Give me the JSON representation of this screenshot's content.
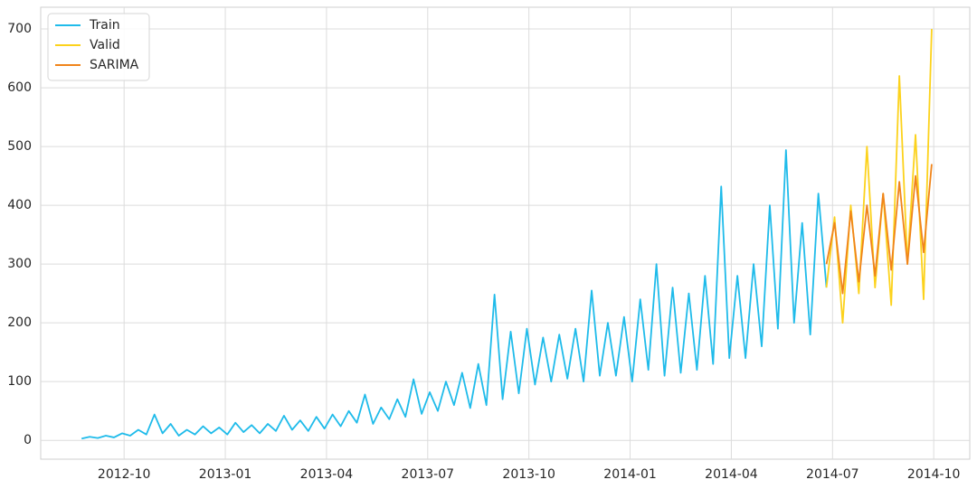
{
  "chart_data": {
    "type": "line",
    "xlim": [
      2012.544,
      2014.839
    ],
    "xticks": [
      {
        "value": 2012.75,
        "label": "2012-10"
      },
      {
        "value": 2013.0,
        "label": "2013-01"
      },
      {
        "value": 2013.25,
        "label": "2013-04"
      },
      {
        "value": 2013.5,
        "label": "2013-07"
      },
      {
        "value": 2013.75,
        "label": "2013-10"
      },
      {
        "value": 2014.0,
        "label": "2014-01"
      },
      {
        "value": 2014.25,
        "label": "2014-04"
      },
      {
        "value": 2014.5,
        "label": "2014-07"
      },
      {
        "value": 2014.75,
        "label": "2014-10"
      }
    ],
    "ylim": [
      -32,
      737
    ],
    "yticks": [
      0,
      100,
      200,
      300,
      400,
      500,
      600,
      700
    ],
    "grid": true,
    "legend": "upper-left",
    "series": [
      {
        "name": "Train",
        "color": "#1fbbea",
        "x": [
          2012.645,
          2012.665,
          2012.685,
          2012.705,
          2012.725,
          2012.745,
          2012.765,
          2012.785,
          2012.805,
          2012.825,
          2012.845,
          2012.865,
          2012.885,
          2012.905,
          2012.925,
          2012.945,
          2012.965,
          2012.985,
          2013.005,
          2013.025,
          2013.045,
          2013.065,
          2013.085,
          2013.105,
          2013.125,
          2013.145,
          2013.165,
          2013.185,
          2013.205,
          2013.225,
          2013.245,
          2013.265,
          2013.285,
          2013.305,
          2013.325,
          2013.345,
          2013.365,
          2013.385,
          2013.405,
          2013.425,
          2013.445,
          2013.465,
          2013.485,
          2013.505,
          2013.525,
          2013.545,
          2013.565,
          2013.585,
          2013.605,
          2013.625,
          2013.645,
          2013.665,
          2013.685,
          2013.705,
          2013.725,
          2013.745,
          2013.765,
          2013.785,
          2013.805,
          2013.825,
          2013.845,
          2013.865,
          2013.885,
          2013.905,
          2013.925,
          2013.945,
          2013.965,
          2013.985,
          2014.005,
          2014.025,
          2014.045,
          2014.065,
          2014.085,
          2014.105,
          2014.125,
          2014.145,
          2014.165,
          2014.185,
          2014.205,
          2014.225,
          2014.245,
          2014.265,
          2014.285,
          2014.305,
          2014.325,
          2014.345,
          2014.365,
          2014.385,
          2014.405,
          2014.425,
          2014.445,
          2014.465,
          2014.485
        ],
        "values": [
          3,
          6,
          4,
          8,
          5,
          12,
          8,
          18,
          10,
          44,
          12,
          28,
          8,
          18,
          10,
          24,
          12,
          22,
          10,
          30,
          14,
          26,
          12,
          28,
          16,
          42,
          18,
          34,
          16,
          40,
          20,
          44,
          24,
          50,
          30,
          78,
          28,
          56,
          36,
          70,
          40,
          104,
          45,
          82,
          50,
          100,
          60,
          115,
          55,
          130,
          60,
          248,
          70,
          185,
          80,
          190,
          95,
          175,
          100,
          180,
          105,
          190,
          100,
          255,
          110,
          200,
          110,
          210,
          100,
          240,
          120,
          300,
          110,
          260,
          115,
          250,
          120,
          280,
          130,
          432,
          140,
          280,
          140,
          300,
          160,
          400,
          190,
          494,
          200,
          370,
          180,
          420,
          260
        ]
      },
      {
        "name": "Valid",
        "color": "#fcd21c",
        "x": [
          2014.485,
          2014.505,
          2014.525,
          2014.545,
          2014.565,
          2014.585,
          2014.605,
          2014.625,
          2014.645,
          2014.665,
          2014.685,
          2014.705,
          2014.725,
          2014.745
        ],
        "values": [
          260,
          380,
          200,
          400,
          250,
          500,
          260,
          420,
          230,
          620,
          300,
          520,
          240,
          700
        ]
      },
      {
        "name": "SARIMA",
        "color": "#f0841a",
        "x": [
          2014.485,
          2014.505,
          2014.525,
          2014.545,
          2014.565,
          2014.585,
          2014.605,
          2014.625,
          2014.645,
          2014.665,
          2014.685,
          2014.705,
          2014.725,
          2014.745
        ],
        "values": [
          300,
          370,
          250,
          390,
          270,
          400,
          280,
          420,
          290,
          440,
          300,
          450,
          320,
          470
        ]
      }
    ]
  }
}
